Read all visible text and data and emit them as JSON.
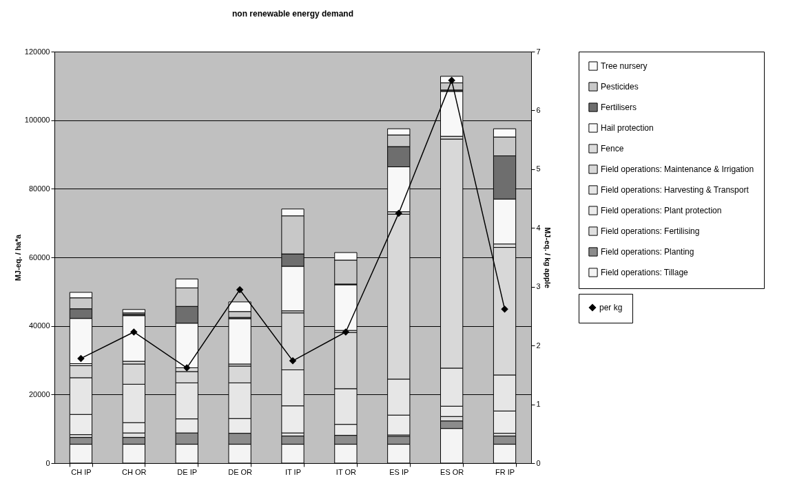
{
  "chart_data": {
    "type": "bar",
    "title": "non renewable energy demand",
    "ylabel": "MJ-eq. / ha*a",
    "y2label": "MJ-eq. / kg apple",
    "categories": [
      "CH  IP",
      "CH  OR",
      "DE  IP",
      "DE  OR",
      "IT  IP",
      "IT  OR",
      "ES  IP",
      "ES  OR",
      "FR  IP"
    ],
    "stacked": true,
    "ylim": [
      0,
      120000
    ],
    "yticks": [
      0,
      20000,
      40000,
      60000,
      80000,
      100000,
      120000
    ],
    "y2lim": [
      0,
      7
    ],
    "y2ticks": [
      0,
      1,
      2,
      3,
      4,
      5,
      6,
      7
    ],
    "grid": "y",
    "legend": "right",
    "series": [
      {
        "name": "Field operations: Tillage",
        "color": "#f4f4f4",
        "values": [
          5500,
          5500,
          5500,
          5500,
          5500,
          5500,
          5500,
          10100,
          5500
        ]
      },
      {
        "name": "Field operations: Planting",
        "color": "#8c8c8c",
        "values": [
          2000,
          2000,
          3300,
          3200,
          2400,
          2600,
          2300,
          2200,
          2400
        ]
      },
      {
        "name": "Field operations: Fertilising",
        "color": "#e0e0e0",
        "values": [
          800,
          1300,
          null,
          null,
          900,
          null,
          400,
          1300,
          800
        ]
      },
      {
        "name": "Field operations: Plant protection",
        "color": "#ececec",
        "values": [
          5900,
          3000,
          4100,
          4300,
          7900,
          3200,
          5800,
          3000,
          6500
        ]
      },
      {
        "name": "Field operations: Harvesting & Transport",
        "color": "#e6e6e6",
        "values": [
          10700,
          11200,
          10500,
          10400,
          10500,
          10400,
          10500,
          11100,
          10500
        ]
      },
      {
        "name": "Field operations: Maintenance & Irrigation",
        "color": "#d8d8d8",
        "values": [
          3500,
          5900,
          3300,
          4900,
          16600,
          16400,
          48100,
          66800,
          37200
        ]
      },
      {
        "name": "Fence",
        "color": "#dcdcdc",
        "values": [
          600,
          800,
          1100,
          600,
          600,
          600,
          700,
          800,
          1000
        ]
      },
      {
        "name": "Hail protection",
        "color": "#f8f8f8",
        "values": [
          13200,
          13300,
          13000,
          13200,
          13000,
          13300,
          13100,
          13100,
          13100
        ]
      },
      {
        "name": "Fertilisers",
        "color": "#6e6e6e",
        "values": [
          2800,
          400,
          4900,
          400,
          3600,
          200,
          5900,
          400,
          12600
        ]
      },
      {
        "name": "Pesticides",
        "color": "#c8c8c8",
        "values": [
          3200,
          400,
          5400,
          1700,
          11100,
          7000,
          3400,
          2100,
          5500
        ]
      },
      {
        "name": "Tree nursery",
        "color": "#fbfbfb",
        "values": [
          1600,
          1000,
          2600,
          2800,
          2000,
          2200,
          1800,
          1900,
          2400
        ]
      },
      {
        "name": "per kg",
        "type": "line",
        "axis": "y2",
        "color": "#000000",
        "marker": "diamond",
        "values": [
          1.78,
          2.23,
          1.62,
          2.95,
          1.74,
          2.23,
          4.25,
          6.51,
          2.62
        ]
      }
    ]
  }
}
